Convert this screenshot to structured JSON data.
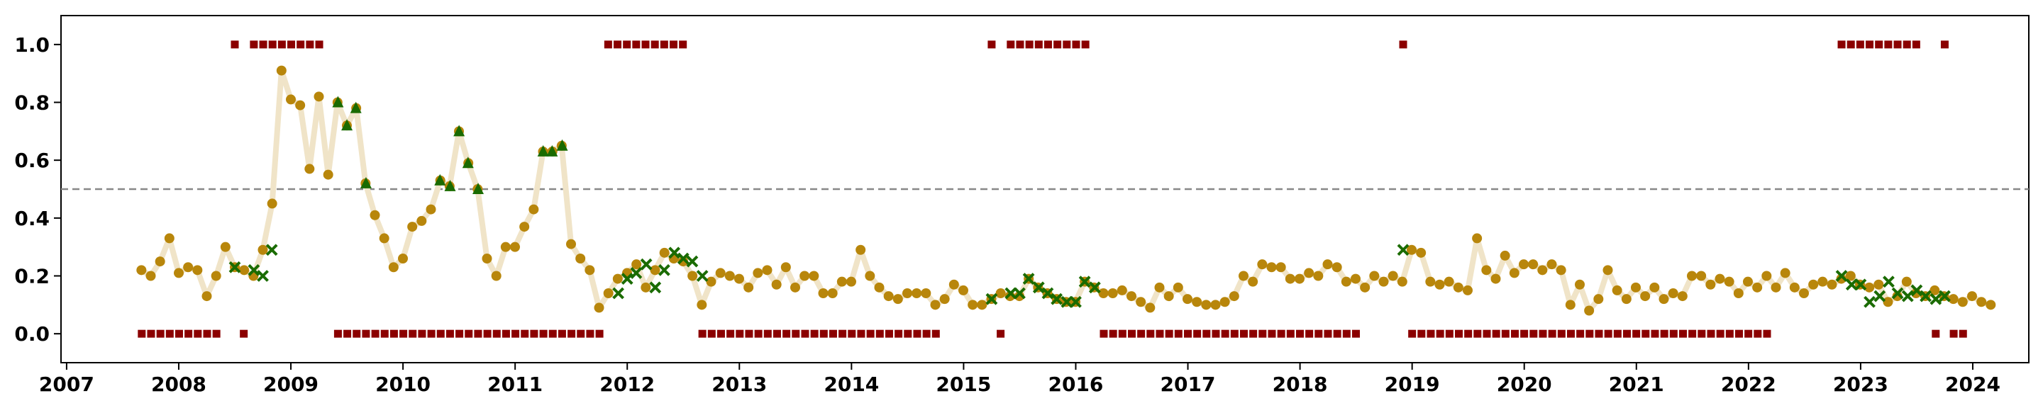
{
  "chart_data": {
    "type": "scatter",
    "title": "",
    "xlabel": "",
    "ylabel": "",
    "xlim": [
      2006.95,
      2024.5
    ],
    "ylim": [
      -0.1,
      1.1
    ],
    "grid": false,
    "xticks": [
      2007,
      2008,
      2009,
      2010,
      2011,
      2012,
      2013,
      2014,
      2015,
      2016,
      2017,
      2018,
      2019,
      2020,
      2021,
      2022,
      2023,
      2024
    ],
    "xtick_labels": [
      "2007",
      "2008",
      "2009",
      "2010",
      "2011",
      "2012",
      "2013",
      "2014",
      "2015",
      "2016",
      "2017",
      "2018",
      "2019",
      "2020",
      "2021",
      "2022",
      "2023",
      "2024"
    ],
    "yticks": [
      0.0,
      0.2,
      0.4,
      0.6,
      0.8,
      1.0
    ],
    "ytick_labels": [
      "0.0",
      "0.2",
      "0.4",
      "0.6",
      "0.8",
      "1.0"
    ],
    "threshold": 0.5,
    "colors": {
      "line": "#f0e4c8",
      "circle": "#b8860b",
      "triangle": "#1a6b00",
      "cross": "#1a6b00",
      "square": "#8b0000",
      "threshold": "#888888"
    },
    "series": [
      {
        "marker": "circle",
        "start": 2007.667,
        "step": 0.0833,
        "values": [
          0.22,
          0.2,
          0.25,
          0.33,
          0.21,
          0.23,
          0.22,
          0.13,
          0.2,
          0.3,
          0.23,
          0.22,
          0.2,
          0.29,
          0.45,
          0.91,
          0.81,
          0.79,
          0.57,
          0.82,
          0.55,
          0.8,
          0.72,
          0.78,
          0.52,
          0.41,
          0.33,
          0.23,
          0.26,
          0.37,
          0.39,
          0.43,
          0.53,
          0.51,
          0.7,
          0.59,
          0.5,
          0.26,
          0.2,
          0.3,
          0.3,
          0.37,
          0.43,
          0.63,
          0.63,
          0.65,
          0.31,
          0.26,
          0.22,
          0.09,
          0.14,
          0.19,
          0.21,
          0.24,
          0.16,
          0.22,
          0.28,
          0.26,
          0.25,
          0.2,
          0.1,
          0.18,
          0.21,
          0.2,
          0.19,
          0.16,
          0.21,
          0.22,
          0.17,
          0.23,
          0.16,
          0.2,
          0.2,
          0.14,
          0.14,
          0.18,
          0.18,
          0.29,
          0.2,
          0.16,
          0.13,
          0.12,
          0.14,
          0.14,
          0.14,
          0.1,
          0.12,
          0.17,
          0.15,
          0.1,
          0.1,
          0.12,
          0.14,
          0.13,
          0.13,
          0.19,
          0.16,
          0.14,
          0.12,
          0.11,
          0.11,
          0.18,
          0.16,
          0.14,
          0.14,
          0.15,
          0.13,
          0.11,
          0.09,
          0.16,
          0.13,
          0.16,
          0.12,
          0.11,
          0.1,
          0.1,
          0.11,
          0.13,
          0.2,
          0.18,
          0.24,
          0.23,
          0.23,
          0.19,
          0.19,
          0.21,
          0.2,
          0.24,
          0.23,
          0.18,
          0.19,
          0.16,
          0.2,
          0.18,
          0.2,
          0.18,
          0.29,
          0.28,
          0.18,
          0.17,
          0.18,
          0.16,
          0.15,
          0.33,
          0.22,
          0.19,
          0.27,
          0.21,
          0.24,
          0.24,
          0.22,
          0.24,
          0.22,
          0.1,
          0.17,
          0.08,
          0.12,
          0.22,
          0.15,
          0.12,
          0.16,
          0.13,
          0.16,
          0.12,
          0.14,
          0.13,
          0.2,
          0.2,
          0.17,
          0.19,
          0.18,
          0.14,
          0.18,
          0.16,
          0.2,
          0.16,
          0.21,
          0.16,
          0.14,
          0.17,
          0.18,
          0.17,
          0.19,
          0.2,
          0.17,
          0.16,
          0.17,
          0.11,
          0.13,
          0.18,
          0.14,
          0.13,
          0.15,
          0.13,
          0.12,
          0.11,
          0.13,
          0.11,
          0.1
        ]
      },
      {
        "marker": "triangle",
        "x": [
          2009.42,
          2009.5,
          2009.58,
          2009.67,
          2010.33,
          2010.42,
          2010.5,
          2010.58,
          2010.67,
          2011.25,
          2011.33,
          2011.42
        ],
        "values": [
          0.8,
          0.72,
          0.78,
          0.52,
          0.53,
          0.51,
          0.7,
          0.59,
          0.5,
          0.63,
          0.63,
          0.65
        ]
      },
      {
        "marker": "cross",
        "x": [
          2008.5,
          2008.67,
          2008.75,
          2008.83,
          2011.92,
          2012.0,
          2012.08,
          2012.17,
          2012.25,
          2012.33,
          2012.42,
          2012.5,
          2012.58,
          2012.67,
          2015.25,
          2015.42,
          2015.5,
          2015.58,
          2015.67,
          2015.75,
          2015.83,
          2015.92,
          2016.0,
          2016.08,
          2016.17,
          2018.92,
          2022.83,
          2022.92,
          2023.0,
          2023.08,
          2023.17,
          2023.25,
          2023.33,
          2023.42,
          2023.5,
          2023.58,
          2023.67,
          2023.75
        ],
        "values": [
          0.23,
          0.22,
          0.2,
          0.29,
          0.14,
          0.19,
          0.21,
          0.24,
          0.16,
          0.22,
          0.28,
          0.26,
          0.25,
          0.2,
          0.12,
          0.14,
          0.14,
          0.19,
          0.16,
          0.14,
          0.12,
          0.11,
          0.11,
          0.18,
          0.16,
          0.29,
          0.2,
          0.17,
          0.17,
          0.11,
          0.13,
          0.18,
          0.14,
          0.13,
          0.15,
          0.13,
          0.12,
          0.13
        ]
      },
      {
        "marker": "square",
        "segments": [
          {
            "y": 1,
            "x": [
              2008.5
            ]
          },
          {
            "y": 1,
            "start": 2008.67,
            "count": 8
          },
          {
            "y": 1,
            "start": 2011.83,
            "count": 9
          },
          {
            "y": 1,
            "x": [
              2015.25
            ]
          },
          {
            "y": 1,
            "start": 2015.42,
            "count": 9
          },
          {
            "y": 1,
            "x": [
              2018.92
            ]
          },
          {
            "y": 1,
            "start": 2022.83,
            "count": 9
          },
          {
            "y": 1,
            "x": [
              2023.75
            ]
          },
          {
            "y": 0,
            "start": 2007.67,
            "count": 9
          },
          {
            "y": 0,
            "x": [
              2008.58
            ]
          },
          {
            "y": 0,
            "start": 2009.42,
            "count": 29
          },
          {
            "y": 0,
            "start": 2012.67,
            "count": 26
          },
          {
            "y": 0,
            "x": [
              2015.33
            ]
          },
          {
            "y": 0,
            "start": 2016.25,
            "count": 28
          },
          {
            "y": 0,
            "start": 2019.0,
            "count": 39
          },
          {
            "y": 0,
            "x": [
              2023.67
            ]
          },
          {
            "y": 0,
            "start": 2023.83,
            "count": 2
          }
        ]
      }
    ]
  }
}
